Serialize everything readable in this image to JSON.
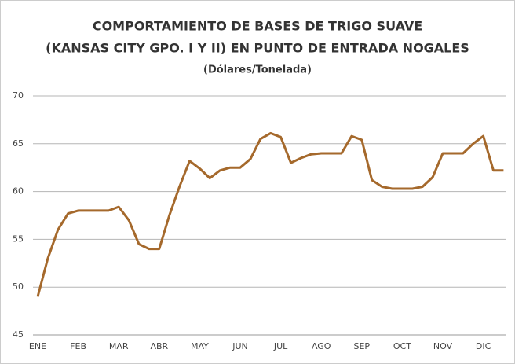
{
  "chart_data": {
    "type": "line",
    "title": [
      "COMPORTAMIENTO DE BASES DE TRIGO SUAVE",
      "(KANSAS CITY GPO. I Y II) EN PUNTO DE ENTRADA NOGALES"
    ],
    "subtitle": "(Dólares/Tonelada)",
    "categories": [
      "ENE",
      null,
      null,
      null,
      "FEB",
      null,
      null,
      null,
      "MAR",
      null,
      null,
      null,
      "ABR",
      null,
      null,
      null,
      "MAY",
      null,
      null,
      null,
      "JUN",
      null,
      null,
      null,
      "JUL",
      null,
      null,
      null,
      "AGO",
      null,
      null,
      null,
      "SEP",
      null,
      null,
      null,
      "OCT",
      null,
      null,
      null,
      "NOV",
      null,
      null,
      null,
      "DIC",
      null,
      null
    ],
    "values": [
      49,
      53,
      56,
      57.7,
      58,
      58,
      58,
      58,
      58.4,
      57,
      54.5,
      54,
      54,
      57.5,
      60.5,
      63.2,
      62.4,
      61.4,
      62.2,
      62.5,
      62.5,
      63.4,
      65.5,
      66.1,
      65.7,
      63,
      63.5,
      63.9,
      64,
      64,
      64,
      65.8,
      65.4,
      61.2,
      60.5,
      60.3,
      60.3,
      60.3,
      60.5,
      61.5,
      64,
      64,
      64,
      65,
      65.8,
      62.2,
      62.2
    ],
    "color": "#a5692c",
    "ylim": [
      45,
      70
    ],
    "yticks": [
      45,
      50,
      55,
      60,
      65,
      70
    ],
    "grid": true
  }
}
